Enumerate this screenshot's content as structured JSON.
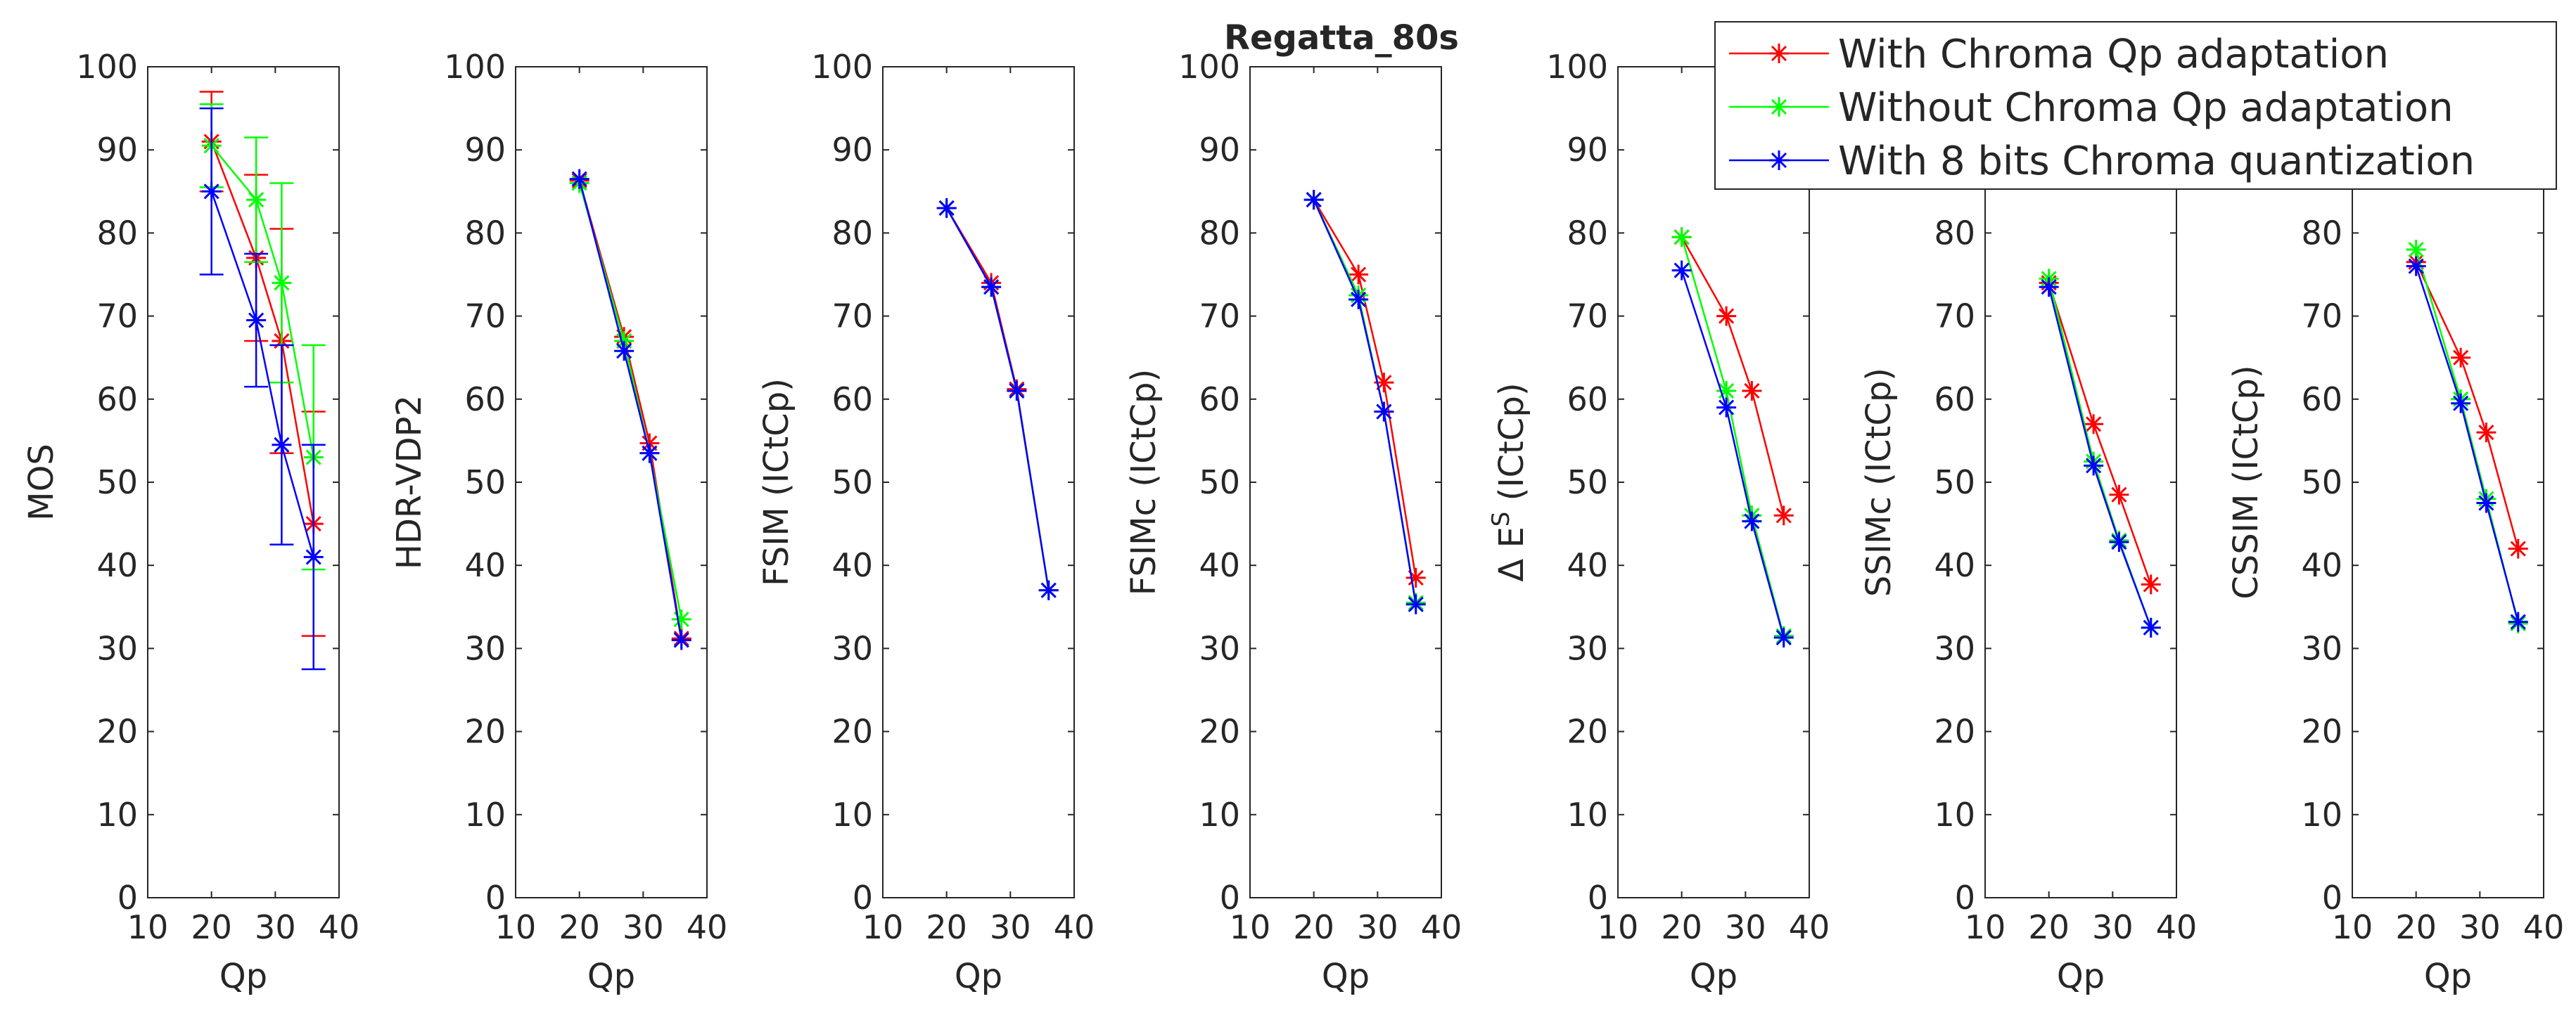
{
  "title": "Regatta_80s",
  "legend": {
    "location": "top-right",
    "entries": [
      {
        "label": "With Chroma Qp adaptation",
        "color": "#ff0000"
      },
      {
        "label": "Without Chroma Qp adaptation",
        "color": "#00ff00"
      },
      {
        "label": "With 8 bits Chroma quantization",
        "color": "#0000ff"
      }
    ]
  },
  "chart_data": [
    {
      "type": "line",
      "title": "",
      "xlabel": "Qp",
      "ylabel": "MOS",
      "xlim": [
        10,
        40
      ],
      "ylim": [
        0,
        100
      ],
      "xticks": [
        10,
        20,
        30,
        40
      ],
      "yticks": [
        0,
        10,
        20,
        30,
        40,
        50,
        60,
        70,
        80,
        90,
        100
      ],
      "error_bars": true,
      "series": [
        {
          "name": "With Chroma Qp adaptation",
          "color": "#ff0000",
          "x": [
            20,
            27,
            31,
            36
          ],
          "y": [
            91,
            77,
            67,
            45
          ],
          "err": [
            6,
            10,
            13.5,
            13.5
          ]
        },
        {
          "name": "Without Chroma Qp adaptation",
          "color": "#00ff00",
          "x": [
            20,
            27,
            31,
            36
          ],
          "y": [
            90.5,
            84,
            74,
            53
          ],
          "err": [
            5,
            7.5,
            12,
            13.5
          ]
        },
        {
          "name": "With 8 bits Chroma quantization",
          "color": "#0000ff",
          "x": [
            20,
            27,
            31,
            36
          ],
          "y": [
            85,
            69.5,
            54.5,
            41
          ],
          "err": [
            10,
            8,
            12,
            13.5
          ]
        }
      ]
    },
    {
      "type": "line",
      "title": "",
      "xlabel": "Qp",
      "ylabel": "HDR-VDP2",
      "xlim": [
        10,
        40
      ],
      "ylim": [
        0,
        100
      ],
      "xticks": [
        10,
        20,
        30,
        40
      ],
      "yticks": [
        0,
        10,
        20,
        30,
        40,
        50,
        60,
        70,
        80,
        90,
        100
      ],
      "series": [
        {
          "name": "With Chroma Qp adaptation",
          "color": "#ff0000",
          "x": [
            20,
            27,
            31,
            36
          ],
          "y": [
            86.3,
            67.5,
            54.7,
            31.2
          ]
        },
        {
          "name": "Without Chroma Qp adaptation",
          "color": "#00ff00",
          "x": [
            20,
            27,
            31,
            36
          ],
          "y": [
            86,
            67,
            53.5,
            33.5
          ]
        },
        {
          "name": "With 8 bits Chroma quantization",
          "color": "#0000ff",
          "x": [
            20,
            27,
            31,
            36
          ],
          "y": [
            86.5,
            65.8,
            53.5,
            31
          ]
        }
      ]
    },
    {
      "type": "line",
      "title": "",
      "xlabel": "Qp",
      "ylabel": "FSIM (ICtCp)",
      "xlim": [
        10,
        40
      ],
      "ylim": [
        0,
        100
      ],
      "xticks": [
        10,
        20,
        30,
        40
      ],
      "yticks": [
        0,
        10,
        20,
        30,
        40,
        50,
        60,
        70,
        80,
        90,
        100
      ],
      "series": [
        {
          "name": "With Chroma Qp adaptation",
          "color": "#ff0000",
          "x": [
            20,
            27,
            31,
            36
          ],
          "y": [
            83,
            74,
            61.2,
            37
          ]
        },
        {
          "name": "Without Chroma Qp adaptation",
          "color": "#00ff00",
          "x": [
            20,
            27,
            31,
            36
          ],
          "y": [
            83,
            73.5,
            61,
            37
          ]
        },
        {
          "name": "With 8 bits Chroma quantization",
          "color": "#0000ff",
          "x": [
            20,
            27,
            31,
            36
          ],
          "y": [
            83,
            73.5,
            61,
            37
          ]
        }
      ]
    },
    {
      "type": "line",
      "title": "",
      "xlabel": "Qp",
      "ylabel": "FSIMc (ICtCp)",
      "xlim": [
        10,
        40
      ],
      "ylim": [
        0,
        100
      ],
      "xticks": [
        10,
        20,
        30,
        40
      ],
      "yticks": [
        0,
        10,
        20,
        30,
        40,
        50,
        60,
        70,
        80,
        90,
        100
      ],
      "series": [
        {
          "name": "With Chroma Qp adaptation",
          "color": "#ff0000",
          "x": [
            20,
            27,
            31,
            36
          ],
          "y": [
            84,
            75,
            62,
            38.5
          ]
        },
        {
          "name": "Without Chroma Qp adaptation",
          "color": "#00ff00",
          "x": [
            20,
            27,
            31,
            36
          ],
          "y": [
            84,
            72.5,
            58.5,
            35.5
          ]
        },
        {
          "name": "With 8 bits Chroma quantization",
          "color": "#0000ff",
          "x": [
            20,
            27,
            31,
            36
          ],
          "y": [
            84,
            72,
            58.5,
            35.3
          ]
        }
      ]
    },
    {
      "type": "line",
      "title": "",
      "xlabel": "Qp",
      "ylabel": "Δ E^S (ICtCp)",
      "ylabel_parts": {
        "prefix": "Δ E",
        "superscript": "S",
        "suffix": " (ICtCp)"
      },
      "xlim": [
        10,
        40
      ],
      "ylim": [
        0,
        100
      ],
      "xticks": [
        10,
        20,
        30,
        40
      ],
      "yticks": [
        0,
        10,
        20,
        30,
        40,
        50,
        60,
        70,
        80,
        90,
        100
      ],
      "series": [
        {
          "name": "With Chroma Qp adaptation",
          "color": "#ff0000",
          "x": [
            20,
            27,
            31,
            36
          ],
          "y": [
            79.5,
            70,
            61,
            46
          ]
        },
        {
          "name": "Without Chroma Qp adaptation",
          "color": "#00ff00",
          "x": [
            20,
            27,
            31,
            36
          ],
          "y": [
            79.5,
            61,
            46,
            31.5
          ]
        },
        {
          "name": "With 8 bits Chroma quantization",
          "color": "#0000ff",
          "x": [
            20,
            27,
            31,
            36
          ],
          "y": [
            75.5,
            59,
            45.3,
            31.3
          ]
        }
      ]
    },
    {
      "type": "line",
      "title": "",
      "xlabel": "Qp",
      "ylabel": "SSIMc (ICtCp)",
      "xlim": [
        10,
        40
      ],
      "ylim": [
        0,
        100
      ],
      "xticks": [
        10,
        20,
        30,
        40
      ],
      "yticks": [
        0,
        10,
        20,
        30,
        40,
        50,
        60,
        70,
        80
      ],
      "series": [
        {
          "name": "With Chroma Qp adaptation",
          "color": "#ff0000",
          "x": [
            20,
            27,
            31,
            36
          ],
          "y": [
            74,
            57,
            48.5,
            37.7
          ]
        },
        {
          "name": "Without Chroma Qp adaptation",
          "color": "#00ff00",
          "x": [
            20,
            27,
            31,
            36
          ],
          "y": [
            74.5,
            52.5,
            43,
            32.5
          ]
        },
        {
          "name": "With 8 bits Chroma quantization",
          "color": "#0000ff",
          "x": [
            20,
            27,
            31,
            36
          ],
          "y": [
            73.5,
            52,
            42.8,
            32.5
          ]
        }
      ]
    },
    {
      "type": "line",
      "title": "",
      "xlabel": "Qp",
      "ylabel": "CSSIM (ICtCp)",
      "xlim": [
        10,
        40
      ],
      "ylim": [
        0,
        100
      ],
      "xticks": [
        10,
        20,
        30,
        40
      ],
      "yticks": [
        0,
        10,
        20,
        30,
        40,
        50,
        60,
        70,
        80
      ],
      "series": [
        {
          "name": "With Chroma Qp adaptation",
          "color": "#ff0000",
          "x": [
            20,
            27,
            31,
            36
          ],
          "y": [
            76.5,
            65,
            56,
            42
          ]
        },
        {
          "name": "Without Chroma Qp adaptation",
          "color": "#00ff00",
          "x": [
            20,
            27,
            31,
            36
          ],
          "y": [
            78,
            60,
            48,
            33
          ]
        },
        {
          "name": "With 8 bits Chroma quantization",
          "color": "#0000ff",
          "x": [
            20,
            27,
            31,
            36
          ],
          "y": [
            76,
            59.5,
            47.5,
            33.2
          ]
        }
      ]
    }
  ]
}
